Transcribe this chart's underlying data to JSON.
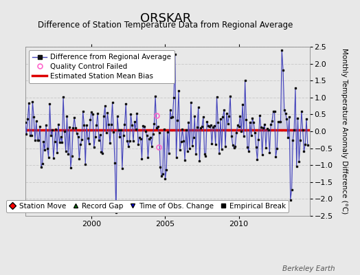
{
  "title": "ORSKAR",
  "subtitle": "Difference of Station Temperature Data from Regional Average",
  "ylabel": "Monthly Temperature Anomaly Difference (°C)",
  "bias_value": 0.05,
  "ylim": [
    -2.5,
    2.5
  ],
  "yticks": [
    -2.5,
    -2,
    -1.5,
    -1,
    -0.5,
    0,
    0.5,
    1,
    1.5,
    2,
    2.5
  ],
  "x_start_year": 1995.5,
  "x_end_year": 2014.8,
  "xticks": [
    2000,
    2005,
    2010
  ],
  "background_color": "#e8e8e8",
  "plot_bg_color": "#e8e8e8",
  "line_color": "#4444bb",
  "fill_color": "#aaaadd",
  "marker_color": "#111111",
  "bias_color": "#dd0000",
  "qc_color": "#ff66cc",
  "berkeley_earth_text": "Berkeley Earth",
  "title_fontsize": 13,
  "subtitle_fontsize": 8.5,
  "ylabel_fontsize": 7.5,
  "legend_fontsize": 7.5,
  "tick_fontsize": 8,
  "seed": 42,
  "n_months": 231,
  "qc_failed_points": [
    [
      2004.42,
      0.46
    ],
    [
      2004.58,
      -0.46
    ]
  ]
}
